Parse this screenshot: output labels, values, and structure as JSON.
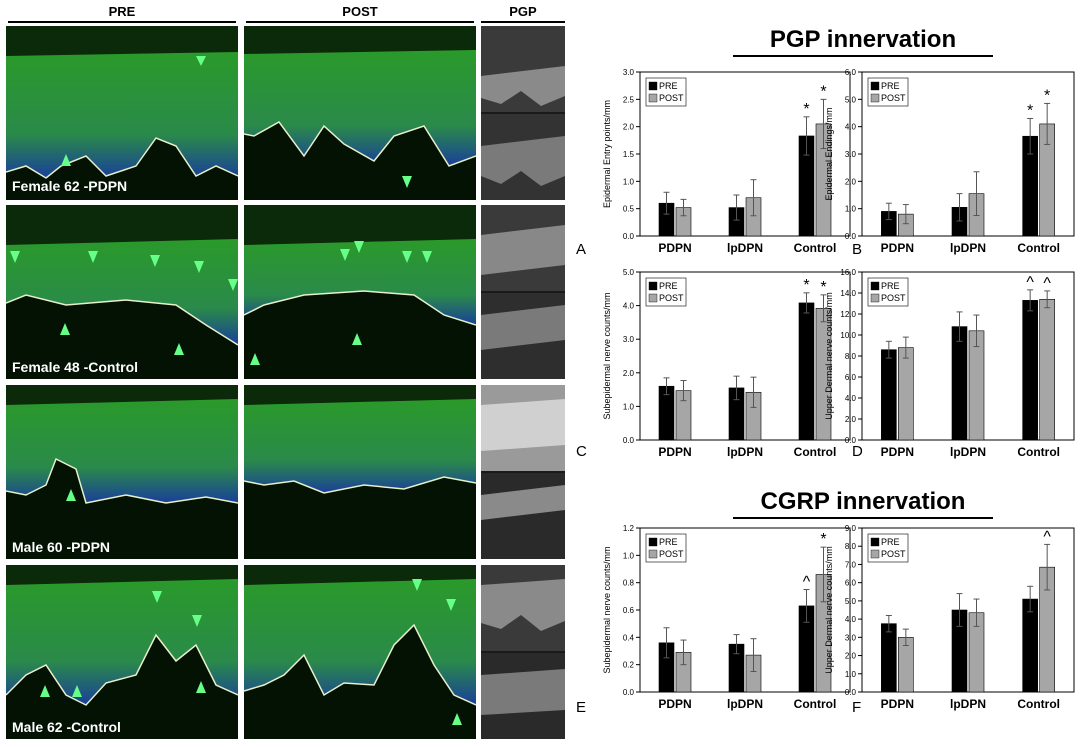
{
  "columns": {
    "pre": "PRE",
    "post": "POST",
    "pgp": "PGP"
  },
  "rows": [
    {
      "label": "Female 62 -PDPN"
    },
    {
      "label": "Female 48 -Control"
    },
    {
      "label": "Male 60 -PDPN"
    },
    {
      "label": "Male 62 -Control"
    }
  ],
  "sections": {
    "pgp": "PGP innervation",
    "cgrp": "CGRP innervation"
  },
  "colors": {
    "pre": "#000000",
    "post": "#a6a6a6",
    "arrow": "#66ff88",
    "fluor_green": "#1f8c1f",
    "fluor_blue": "#1a3fa0"
  },
  "chart_data": [
    {
      "panel": "A",
      "type": "bar",
      "categories": [
        "PDPN",
        "lpDPN",
        "Control"
      ],
      "ylabel": "Epidermal Entry points/mm",
      "ylim": [
        0,
        3.0
      ],
      "yticks": [
        "0.0",
        "0.5",
        "1.0",
        "1.5",
        "2.0",
        "2.5",
        "3.0"
      ],
      "legend": "top-left",
      "series": [
        {
          "name": "PRE",
          "values": [
            0.6,
            0.52,
            1.83
          ],
          "errors": [
            0.2,
            0.23,
            0.35
          ]
        },
        {
          "name": "POST",
          "values": [
            0.52,
            0.7,
            2.05
          ],
          "errors": [
            0.15,
            0.33,
            0.45
          ]
        }
      ],
      "annotations": [
        {
          "category": "Control",
          "series": "PRE",
          "text": "*"
        },
        {
          "category": "Control",
          "series": "POST",
          "text": "*"
        }
      ]
    },
    {
      "panel": "B",
      "type": "bar",
      "categories": [
        "PDPN",
        "lpDPN",
        "Control"
      ],
      "ylabel": "Epidermal Endings/mm",
      "ylim": [
        0,
        6.0
      ],
      "yticks": [
        "0.0",
        "1.0",
        "2.0",
        "3.0",
        "4.0",
        "5.0",
        "6.0"
      ],
      "legend": "top-left",
      "series": [
        {
          "name": "PRE",
          "values": [
            0.9,
            1.05,
            3.65
          ],
          "errors": [
            0.3,
            0.5,
            0.65
          ]
        },
        {
          "name": "POST",
          "values": [
            0.8,
            1.55,
            4.1
          ],
          "errors": [
            0.35,
            0.8,
            0.75
          ]
        }
      ],
      "annotations": [
        {
          "category": "Control",
          "series": "PRE",
          "text": "*"
        },
        {
          "category": "Control",
          "series": "POST",
          "text": "*"
        }
      ]
    },
    {
      "panel": "C",
      "type": "bar",
      "categories": [
        "PDPN",
        "lpDPN",
        "Control"
      ],
      "ylabel": "Subepidermal nerve counts/mm",
      "ylim": [
        0,
        5.0
      ],
      "yticks": [
        "0.0",
        "1.0",
        "2.0",
        "3.0",
        "4.0",
        "5.0"
      ],
      "legend": "top-left",
      "series": [
        {
          "name": "PRE",
          "values": [
            1.6,
            1.55,
            4.08
          ],
          "errors": [
            0.25,
            0.35,
            0.3
          ]
        },
        {
          "name": "POST",
          "values": [
            1.47,
            1.42,
            3.92
          ],
          "errors": [
            0.3,
            0.45,
            0.4
          ]
        }
      ],
      "annotations": [
        {
          "category": "Control",
          "series": "PRE",
          "text": "*"
        },
        {
          "category": "Control",
          "series": "POST",
          "text": "*"
        }
      ]
    },
    {
      "panel": "D",
      "type": "bar",
      "categories": [
        "PDPN",
        "lpDPN",
        "Control"
      ],
      "ylabel": "Upper Dermal nerve counts/mm",
      "ylim": [
        0,
        16.0
      ],
      "yticks": [
        "0.0",
        "2.0",
        "4.0",
        "6.0",
        "8.0",
        "10.0",
        "12.0",
        "14.0",
        "16.0"
      ],
      "legend": "top-left",
      "series": [
        {
          "name": "PRE",
          "values": [
            8.6,
            10.8,
            13.3
          ],
          "errors": [
            0.8,
            1.4,
            1.0
          ]
        },
        {
          "name": "POST",
          "values": [
            8.8,
            10.4,
            13.4
          ],
          "errors": [
            1.0,
            1.5,
            0.8
          ]
        }
      ],
      "annotations": [
        {
          "category": "Control",
          "series": "PRE",
          "text": "^"
        },
        {
          "category": "Control",
          "series": "POST",
          "text": "^"
        }
      ]
    },
    {
      "panel": "E",
      "type": "bar",
      "categories": [
        "PDPN",
        "lpDPN",
        "Control"
      ],
      "ylabel": "Subepidermal nerve counts/mm",
      "ylim": [
        0,
        1.2
      ],
      "yticks": [
        "0.0",
        "0.2",
        "0.4",
        "0.6",
        "0.8",
        "1.0",
        "1.2"
      ],
      "legend": "top-left",
      "series": [
        {
          "name": "PRE",
          "values": [
            0.36,
            0.35,
            0.63
          ],
          "errors": [
            0.11,
            0.07,
            0.12
          ]
        },
        {
          "name": "POST",
          "values": [
            0.29,
            0.27,
            0.86
          ],
          "errors": [
            0.09,
            0.12,
            0.2
          ]
        }
      ],
      "annotations": [
        {
          "category": "Control",
          "series": "PRE",
          "text": "^"
        },
        {
          "category": "Control",
          "series": "POST",
          "text": "*"
        }
      ]
    },
    {
      "panel": "F",
      "type": "bar",
      "categories": [
        "PDPN",
        "lpDPN",
        "Control"
      ],
      "ylabel": "Upper Dermal nerve counts/mm",
      "ylim": [
        0,
        9.0
      ],
      "yticks": [
        "0.0",
        "1.0",
        "2.0",
        "3.0",
        "4.0",
        "5.0",
        "6.0",
        "7.0",
        "8.0",
        "9.0"
      ],
      "legend": "top-left",
      "series": [
        {
          "name": "PRE",
          "values": [
            3.75,
            4.5,
            5.1
          ],
          "errors": [
            0.45,
            0.9,
            0.7
          ]
        },
        {
          "name": "POST",
          "values": [
            3.0,
            4.35,
            6.85
          ],
          "errors": [
            0.45,
            0.75,
            1.25
          ]
        }
      ],
      "annotations": [
        {
          "category": "Control",
          "series": "POST",
          "text": "^"
        }
      ]
    }
  ]
}
